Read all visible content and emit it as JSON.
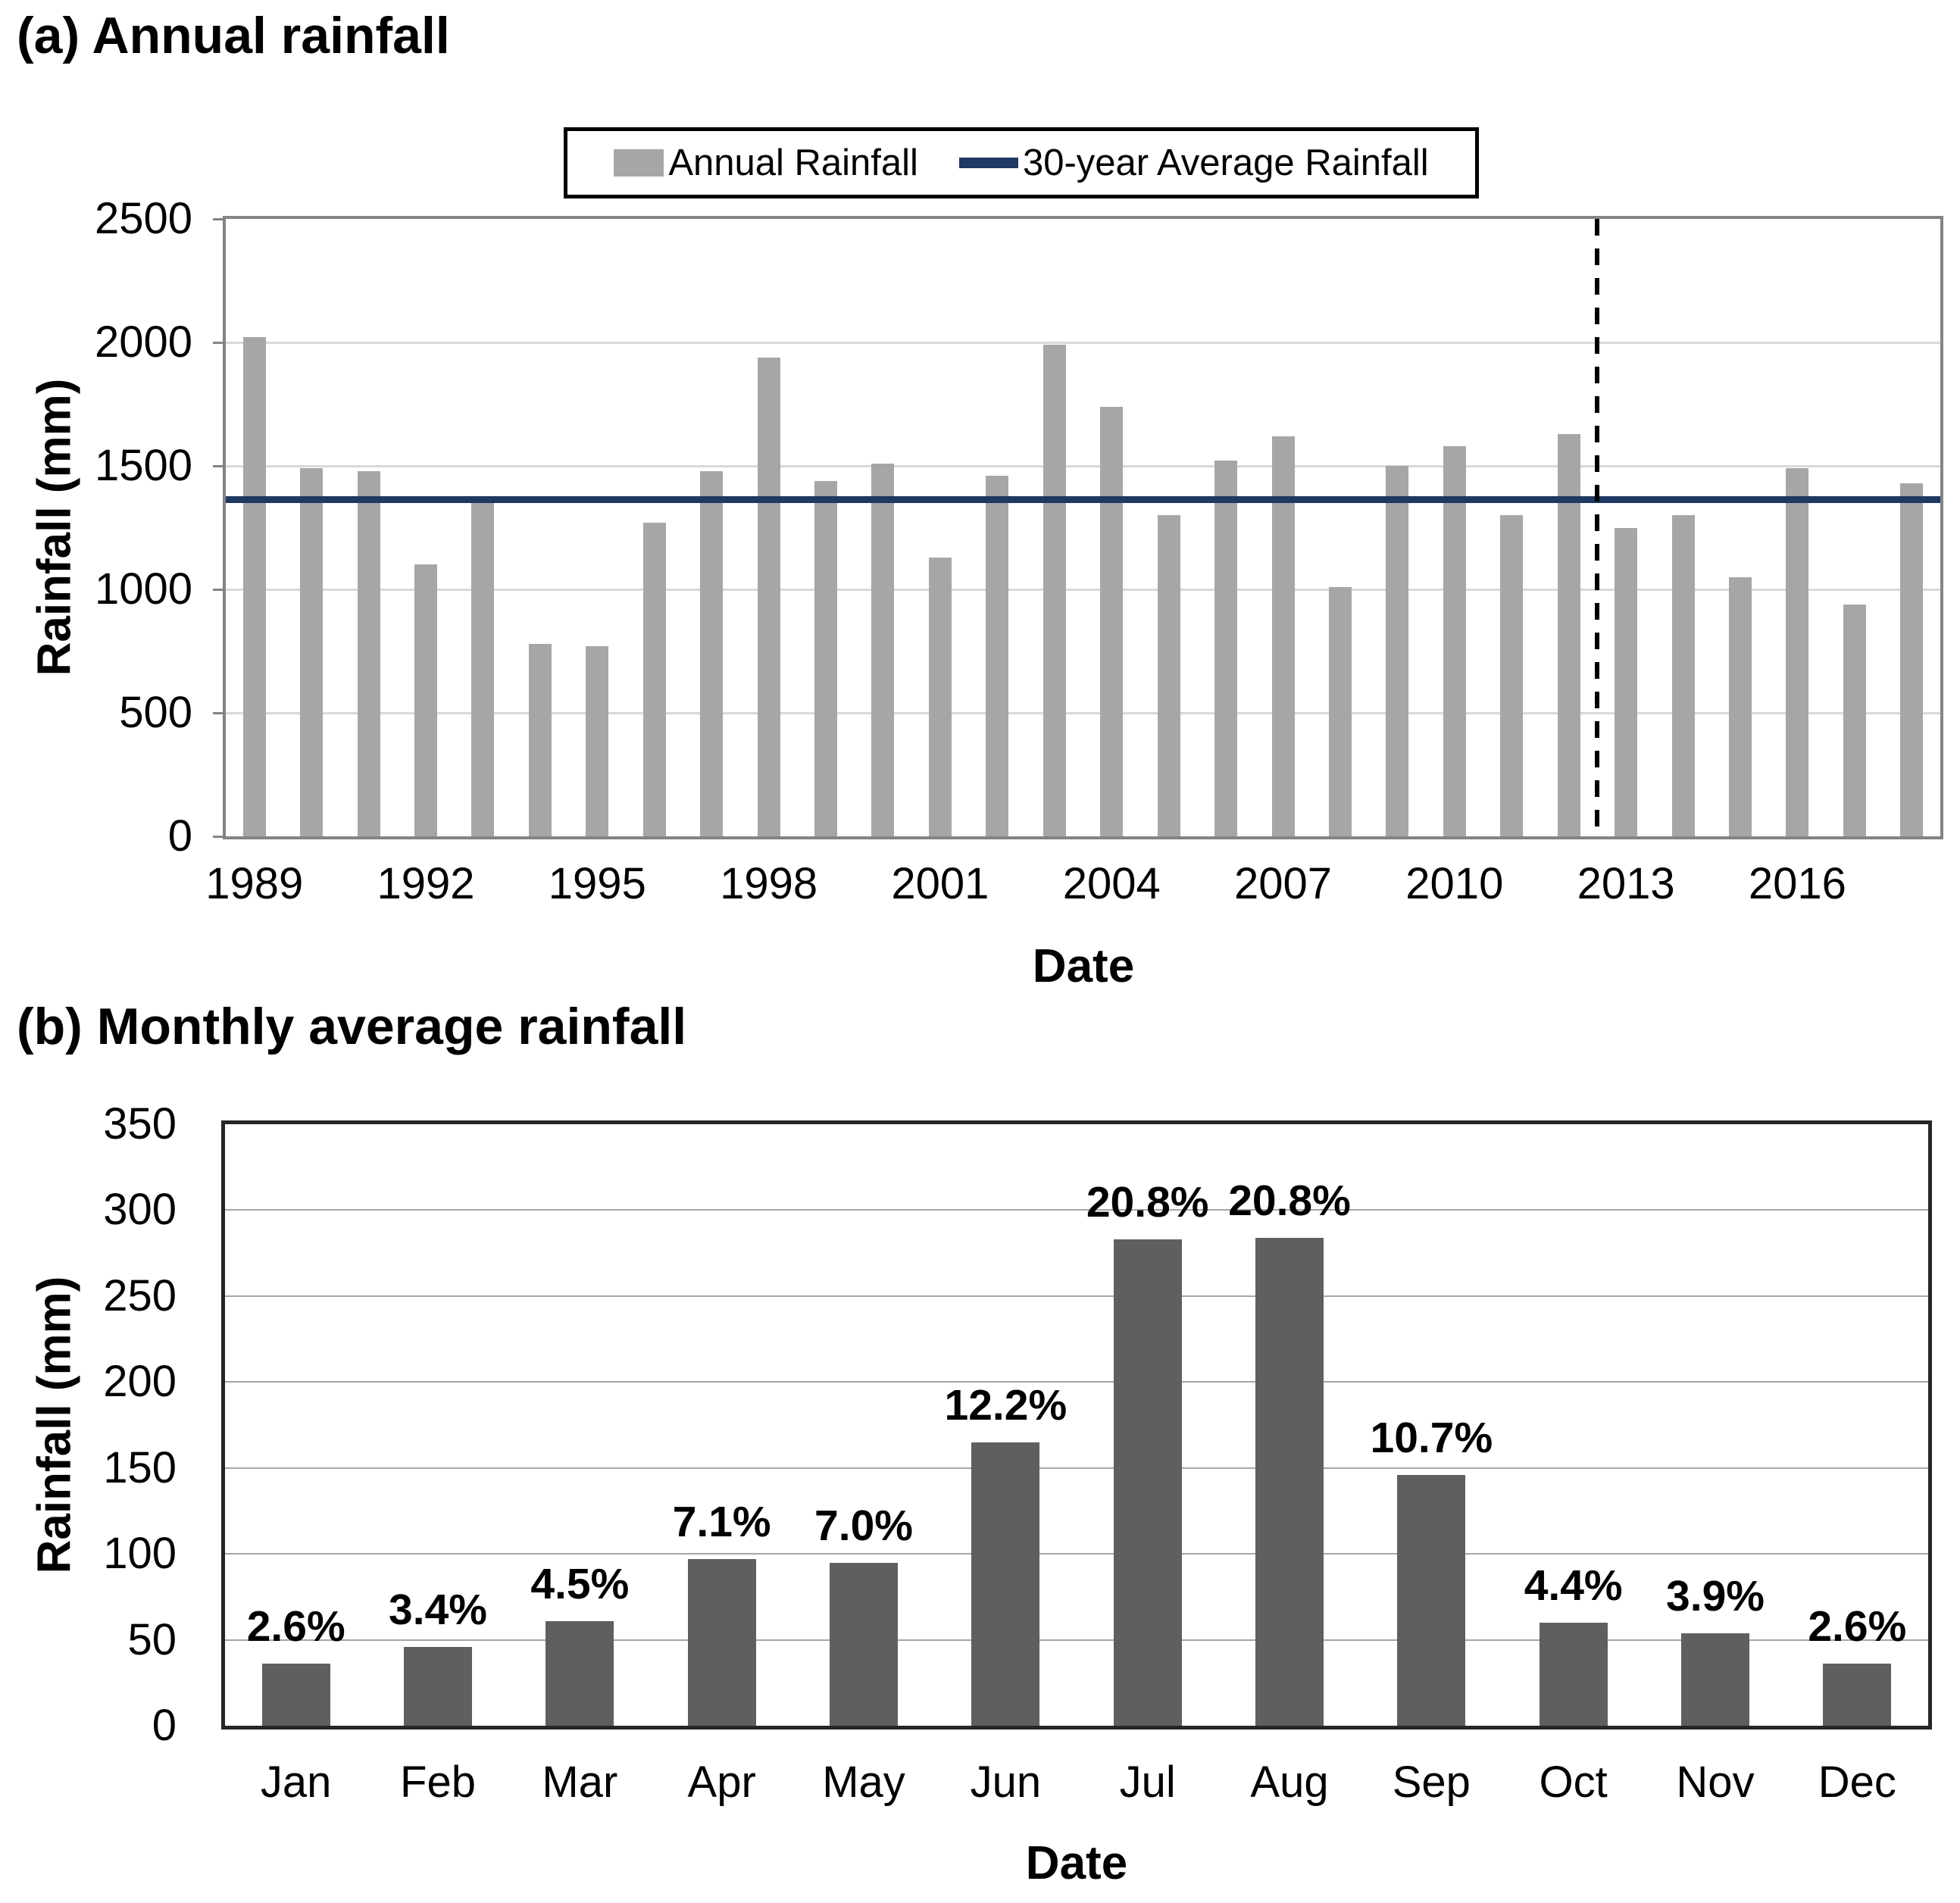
{
  "chart_data": [
    {
      "id": "annual",
      "type": "bar",
      "title": "(a) Annual rainfall",
      "xlabel": "Date",
      "ylabel": "Rainfall (mm)",
      "categories": [
        "1989",
        "1990",
        "1991",
        "1992",
        "1993",
        "1994",
        "1995",
        "1996",
        "1997",
        "1998",
        "1999",
        "2000",
        "2001",
        "2002",
        "2003",
        "2004",
        "2005",
        "2006",
        "2007",
        "2008",
        "2009",
        "2010",
        "2011",
        "2012",
        "2013",
        "2014",
        "2015",
        "2016",
        "2017",
        "2018"
      ],
      "values": [
        2020,
        1490,
        1480,
        1100,
        1350,
        780,
        770,
        1270,
        1480,
        1940,
        1440,
        1510,
        1130,
        1460,
        1990,
        1740,
        1300,
        1520,
        1620,
        1010,
        1500,
        1580,
        1300,
        1630,
        1250,
        1300,
        1050,
        1490,
        940,
        1430
      ],
      "ylim": [
        0,
        2500
      ],
      "ytick_step": 500,
      "y_ticks": [
        "0",
        "500",
        "1000",
        "1500",
        "2000",
        "2500"
      ],
      "x_ticks": [
        "1989",
        "1992",
        "1995",
        "1998",
        "2001",
        "2004",
        "2007",
        "2010",
        "2013",
        "2016"
      ],
      "grid": true,
      "legend_position": "top",
      "bar_color": "#a6a6a6",
      "legend": [
        {
          "label": "Annual Rainfall",
          "swatch": "bar",
          "color": "#a6a6a6"
        },
        {
          "label": "30-year Average Rainfall",
          "swatch": "line",
          "color": "#1f3864"
        }
      ],
      "average_line": {
        "value": 1365,
        "color": "#1f3864"
      },
      "vline_dashed": {
        "between": [
          "2012",
          "2013"
        ],
        "color": "#000000"
      }
    },
    {
      "id": "monthly",
      "type": "bar",
      "title": "(b) Monthly average rainfall",
      "xlabel": "Date",
      "ylabel": "Rainfall (mm)",
      "categories": [
        "Jan",
        "Feb",
        "Mar",
        "Apr",
        "May",
        "Jun",
        "Jul",
        "Aug",
        "Sep",
        "Oct",
        "Nov",
        "Dec"
      ],
      "values": [
        36,
        46,
        61,
        97,
        95,
        165,
        283,
        284,
        146,
        60,
        54,
        36
      ],
      "bar_labels": [
        "2.6%",
        "3.4%",
        "4.5%",
        "7.1%",
        "7.0%",
        "12.2%",
        "20.8%",
        "20.8%",
        "10.7%",
        "4.4%",
        "3.9%",
        "2.6%"
      ],
      "ylim": [
        0,
        350
      ],
      "ytick_step": 50,
      "y_ticks": [
        "0",
        "50",
        "100",
        "150",
        "200",
        "250",
        "300",
        "350"
      ],
      "grid": true,
      "bar_color": "#5f5f5f"
    }
  ]
}
